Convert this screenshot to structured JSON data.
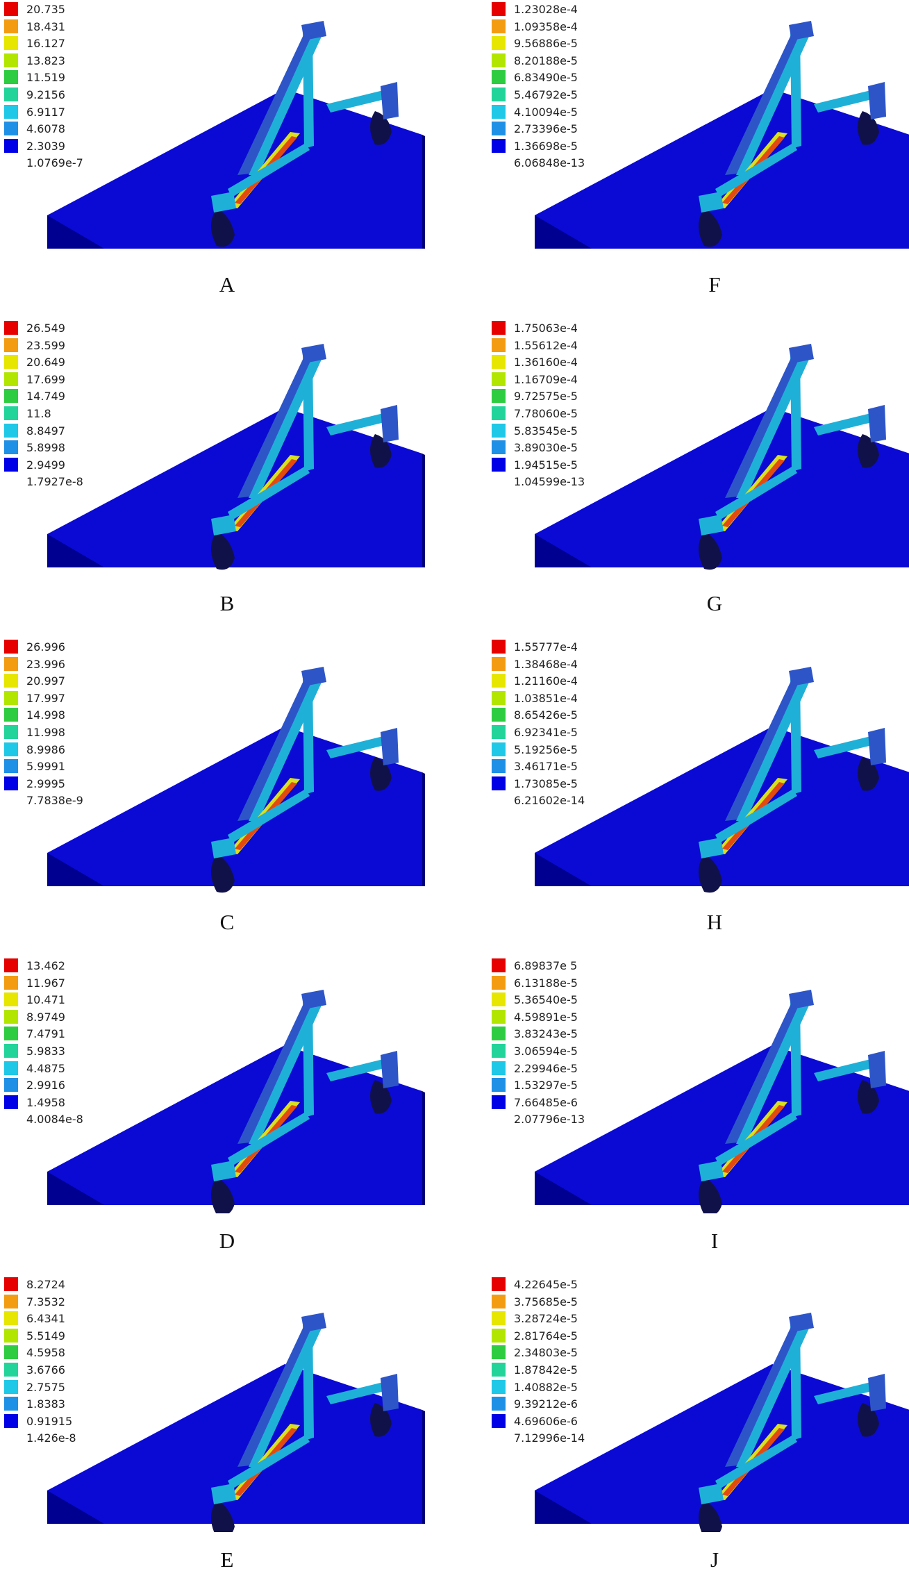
{
  "legend_colors": [
    "#e60000",
    "#f39c12",
    "#e6e600",
    "#b2e600",
    "#2ecc40",
    "#22d49a",
    "#1ec8e6",
    "#1e90e6",
    "#0000e6"
  ],
  "scene_colors": {
    "table_top": "#0a0ad4",
    "table_side": "#00007a",
    "table_front": "#000090",
    "frame": "#1fb0d8",
    "frame_dark": "#2d55c8",
    "hot": "#e34a10",
    "warm": "#d9e020",
    "mount": "#11114a"
  },
  "panels": [
    {
      "label": "A",
      "legend": [
        "20.735",
        "18.431",
        "16.127",
        "13.823",
        "11.519",
        "9.2156",
        "6.9117",
        "4.6078",
        "2.3039",
        "1.0769e-7"
      ]
    },
    {
      "label": "F",
      "legend": [
        "1.23028e-4",
        "1.09358e-4",
        "9.56886e-5",
        "8.20188e-5",
        "6.83490e-5",
        "5.46792e-5",
        "4.10094e-5",
        "2.73396e-5",
        "1.36698e-5",
        "6.06848e-13"
      ]
    },
    {
      "label": "B",
      "legend": [
        "26.549",
        "23.599",
        "20.649",
        "17.699",
        "14.749",
        "11.8",
        "8.8497",
        "5.8998",
        "2.9499",
        "1.7927e-8"
      ]
    },
    {
      "label": "G",
      "legend": [
        "1.75063e-4",
        "1.55612e-4",
        "1.36160e-4",
        "1.16709e-4",
        "9.72575e-5",
        "7.78060e-5",
        "5.83545e-5",
        "3.89030e-5",
        "1.94515e-5",
        "1.04599e-13"
      ]
    },
    {
      "label": "C",
      "legend": [
        "26.996",
        "23.996",
        "20.997",
        "17.997",
        "14.998",
        "11.998",
        "8.9986",
        "5.9991",
        "2.9995",
        "7.7838e-9"
      ]
    },
    {
      "label": "H",
      "legend": [
        "1.55777e-4",
        "1.38468e-4",
        "1.21160e-4",
        "1.03851e-4",
        "8.65426e-5",
        "6.92341e-5",
        "5.19256e-5",
        "3.46171e-5",
        "1.73085e-5",
        "6.21602e-14"
      ]
    },
    {
      "label": "D",
      "legend": [
        "13.462",
        "11.967",
        "10.471",
        "8.9749",
        "7.4791",
        "5.9833",
        "4.4875",
        "2.9916",
        "1.4958",
        "4.0084e-8"
      ]
    },
    {
      "label": "I",
      "legend": [
        "6.89837e 5",
        "6.13188e-5",
        "5.36540e-5",
        "4.59891e-5",
        "3.83243e-5",
        "3.06594e-5",
        "2.29946e-5",
        "1.53297e-5",
        "7.66485e-6",
        "2.07796e-13"
      ]
    },
    {
      "label": "E",
      "legend": [
        "8.2724",
        "7.3532",
        "6.4341",
        "5.5149",
        "4.5958",
        "3.6766",
        "2.7575",
        "1.8383",
        "0.91915",
        "1.426e-8"
      ]
    },
    {
      "label": "J",
      "legend": [
        "4.22645e-5",
        "3.75685e-5",
        "3.28724e-5",
        "2.81764e-5",
        "2.34803e-5",
        "1.87842e-5",
        "1.40882e-5",
        "9.39212e-6",
        "4.69606e-6",
        "7.12996e-14"
      ]
    }
  ]
}
